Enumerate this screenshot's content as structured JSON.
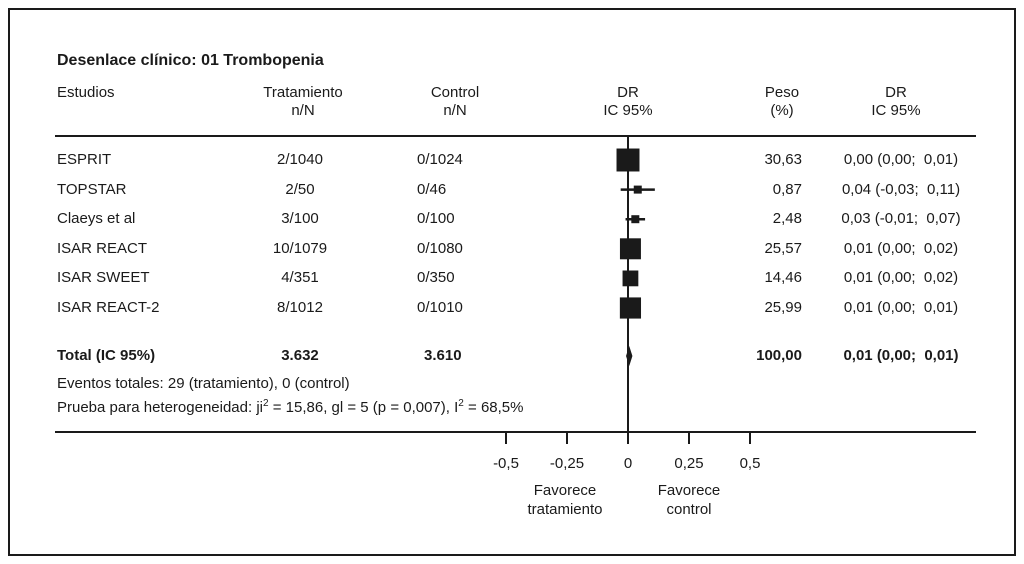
{
  "figure": {
    "header": {
      "estudios": "Estudios",
      "tratamiento": [
        "Tratamiento",
        "n/N"
      ],
      "control": [
        "Control",
        "n/N"
      ],
      "dr_plot": [
        "DR",
        "IC 95%"
      ],
      "peso": [
        "Peso",
        "(%)"
      ],
      "dr_text": [
        "DR",
        "IC 95%"
      ]
    },
    "events_note": "Eventos totales: 29 (tratamiento), 0 (control)",
    "heterogeneity": {
      "part1": "Prueba para heterogeneidad: ji",
      "sup1": "2",
      "part2": " = 15,86, gl = 5 (p = 0,007), I",
      "sup2": "2",
      "part3": " = 68,5%"
    },
    "colors": {
      "ink": "#1a1a1a",
      "background": "#ffffff"
    }
  },
  "chart_data": {
    "type": "forest",
    "title": "Desenlace clínico: 01 Trombopenia",
    "effect_measure": "DR IC 95%",
    "studies": [
      {
        "name": "ESPRIT",
        "treatment": "2/1040",
        "control": "0/1024",
        "estimate": 0.0,
        "ci_low": 0.0,
        "ci_high": 0.01,
        "weight": 30.63,
        "weight_label": "30,63",
        "dr_label": "0,00 (0,00;  0,01)"
      },
      {
        "name": "TOPSTAR",
        "treatment": "2/50",
        "control": "0/46",
        "estimate": 0.04,
        "ci_low": -0.03,
        "ci_high": 0.11,
        "weight": 0.87,
        "weight_label": "0,87",
        "dr_label": "0,04 (-0,03;  0,11)"
      },
      {
        "name": "Claeys et al",
        "treatment": "3/100",
        "control": "0/100",
        "estimate": 0.03,
        "ci_low": -0.01,
        "ci_high": 0.07,
        "weight": 2.48,
        "weight_label": "2,48",
        "dr_label": "0,03 (-0,01;  0,07)"
      },
      {
        "name": "ISAR REACT",
        "treatment": "10/1079",
        "control": "0/1080",
        "estimate": 0.01,
        "ci_low": 0.0,
        "ci_high": 0.02,
        "weight": 25.57,
        "weight_label": "25,57",
        "dr_label": "0,01 (0,00;  0,02)"
      },
      {
        "name": "ISAR SWEET",
        "treatment": "4/351",
        "control": "0/350",
        "estimate": 0.01,
        "ci_low": 0.0,
        "ci_high": 0.02,
        "weight": 14.46,
        "weight_label": "14,46",
        "dr_label": "0,01 (0,00;  0,02)"
      },
      {
        "name": "ISAR REACT-2",
        "treatment": "8/1012",
        "control": "0/1010",
        "estimate": 0.01,
        "ci_low": 0.0,
        "ci_high": 0.01,
        "weight": 25.99,
        "weight_label": "25,99",
        "dr_label": "0,01 (0,00;  0,01)"
      }
    ],
    "total": {
      "name": "Total (IC 95%)",
      "treatment": "3.632",
      "control": "3.610",
      "estimate": 0.01,
      "ci_low": 0.0,
      "ci_high": 0.01,
      "weight_label": "100,00",
      "dr_label": "0,01 (0,00;  0,01)"
    },
    "axis": {
      "ticks": [
        -0.5,
        -0.25,
        0,
        0.25,
        0.5
      ],
      "tick_labels": [
        "-0,5",
        "-0,25",
        "0",
        "0,25",
        "0,5"
      ],
      "xlim": [
        -0.62,
        0.66
      ],
      "left_label": [
        "Favorece",
        "tratamiento"
      ],
      "right_label": [
        "Favorece",
        "control"
      ]
    },
    "grid": false,
    "legend": false
  }
}
